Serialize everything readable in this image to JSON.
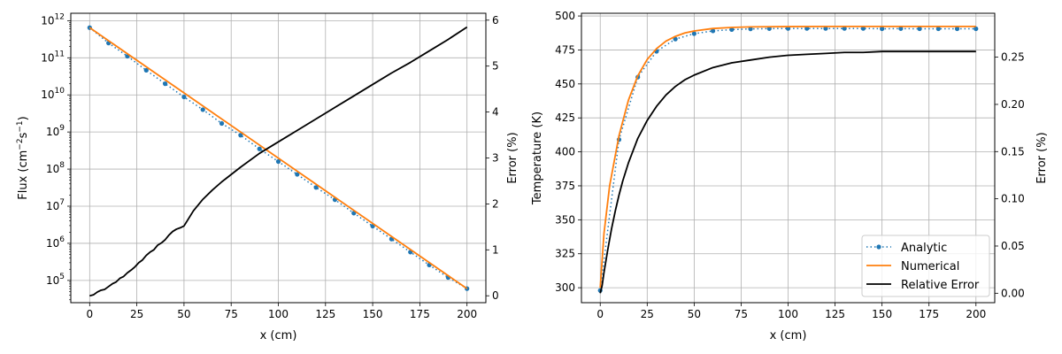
{
  "chart_data": [
    {
      "type": "line",
      "xlabel": "x (cm)",
      "ylabel_base": "Flux (cm",
      "ylabel_sup1": "−2",
      "ylabel_mid": "s",
      "ylabel_sup2": "−1",
      "ylabel_end": ")",
      "y2label": "Error (%)",
      "xlim": [
        -10,
        210
      ],
      "ylim_log10": [
        4.4,
        12.2
      ],
      "y2lim": [
        -0.15,
        6.15
      ],
      "yscale": "log",
      "grid": true,
      "xticks": [
        0,
        25,
        50,
        75,
        100,
        125,
        150,
        175,
        200
      ],
      "xtick_labels": [
        "0",
        "25",
        "50",
        "75",
        "100",
        "125",
        "150",
        "175",
        "200"
      ],
      "yticks_exp": [
        5,
        6,
        7,
        8,
        9,
        10,
        11,
        12
      ],
      "ytick_base": "10",
      "ytick_exp_labels": [
        "5",
        "6",
        "7",
        "8",
        "9",
        "10",
        "11",
        "12"
      ],
      "y2ticks": [
        0,
        1,
        2,
        3,
        4,
        5,
        6
      ],
      "y2tick_labels": [
        "0",
        "1",
        "2",
        "3",
        "4",
        "5",
        "6"
      ],
      "series": [
        {
          "name": "Analytic",
          "style": "dotted-markers",
          "color": "#1f77b4",
          "x": [
            0,
            10,
            20,
            30,
            40,
            50,
            60,
            70,
            80,
            90,
            100,
            110,
            120,
            130,
            140,
            150,
            160,
            170,
            180,
            190,
            200
          ],
          "y": [
            650000000000.0,
            250000000000.0,
            110000000000.0,
            46000000000.0,
            20000000000.0,
            8800000000.0,
            4000000000.0,
            1700000000.0,
            820000000.0,
            350000000.0,
            160000000.0,
            72000000.0,
            32000000.0,
            15000000.0,
            6500000.0,
            2900000.0,
            1300000.0,
            580000.0,
            260000.0,
            120000.0,
            60000.0
          ]
        },
        {
          "name": "Numerical",
          "style": "line",
          "color": "#ff7f0e",
          "x": [
            0,
            200
          ],
          "y": [
            650000000000.0,
            60000.0
          ]
        },
        {
          "name": "Relative Error",
          "style": "line",
          "color": "#000000",
          "axis": "right",
          "x": [
            0,
            2,
            4,
            6,
            8,
            10,
            12,
            14,
            16,
            18,
            20,
            22,
            24,
            26,
            28,
            30,
            32,
            34,
            36,
            38,
            40,
            42,
            44,
            46,
            48,
            50,
            55,
            60,
            65,
            70,
            80,
            90,
            100,
            110,
            120,
            130,
            140,
            150,
            160,
            170,
            180,
            190,
            200
          ],
          "y": [
            0.0,
            0.02,
            0.08,
            0.12,
            0.14,
            0.2,
            0.26,
            0.3,
            0.38,
            0.42,
            0.5,
            0.56,
            0.63,
            0.72,
            0.78,
            0.88,
            0.95,
            1.0,
            1.1,
            1.15,
            1.22,
            1.32,
            1.4,
            1.45,
            1.48,
            1.52,
            1.85,
            2.1,
            2.3,
            2.48,
            2.8,
            3.1,
            3.35,
            3.6,
            3.85,
            4.1,
            4.35,
            4.6,
            4.85,
            5.08,
            5.33,
            5.58,
            5.85
          ]
        }
      ]
    },
    {
      "type": "line",
      "xlabel": "x (cm)",
      "ylabel": "Temperature (K)",
      "y2label": "Error (%)",
      "xlim": [
        -10,
        210
      ],
      "ylim": [
        289,
        502
      ],
      "y2lim": [
        -0.01,
        0.2965
      ],
      "grid": true,
      "legend": "bottom-right",
      "xticks": [
        0,
        25,
        50,
        75,
        100,
        125,
        150,
        175,
        200
      ],
      "xtick_labels": [
        "0",
        "25",
        "50",
        "75",
        "100",
        "125",
        "150",
        "175",
        "200"
      ],
      "yticks": [
        300,
        325,
        350,
        375,
        400,
        425,
        450,
        475,
        500
      ],
      "ytick_labels": [
        "300",
        "325",
        "350",
        "375",
        "400",
        "425",
        "450",
        "475",
        "500"
      ],
      "y2ticks": [
        0,
        0.05,
        0.1,
        0.15,
        0.2,
        0.25
      ],
      "y2tick_labels": [
        "0.00",
        "0.05",
        "0.10",
        "0.15",
        "0.20",
        "0.25"
      ],
      "series": [
        {
          "name": "Analytic",
          "style": "dotted-markers",
          "color": "#1f77b4",
          "x": [
            0,
            10,
            20,
            30,
            40,
            50,
            60,
            70,
            80,
            90,
            100,
            110,
            120,
            130,
            140,
            150,
            160,
            170,
            180,
            190,
            200
          ],
          "y": [
            298,
            409,
            455,
            474,
            483,
            487,
            489,
            490,
            490.5,
            490.7,
            490.8,
            490.8,
            490.8,
            490.8,
            490.8,
            490.6,
            490.7,
            490.6,
            490.6,
            490.6,
            490.6
          ]
        },
        {
          "name": "Numerical",
          "style": "line",
          "color": "#ff7f0e",
          "x": [
            0,
            2,
            5,
            10,
            15,
            20,
            25,
            30,
            35,
            40,
            45,
            50,
            60,
            70,
            80,
            100,
            125,
            150,
            175,
            200
          ],
          "y": [
            300,
            340,
            375,
            412,
            438,
            456,
            468,
            476,
            481.5,
            485,
            487.5,
            489,
            490.8,
            491.6,
            492,
            492.2,
            492.3,
            492.3,
            492.3,
            492.3
          ]
        },
        {
          "name": "Relative Error",
          "style": "line",
          "color": "#000000",
          "axis": "right",
          "x": [
            0,
            1,
            2,
            4,
            6,
            8,
            10,
            12,
            15,
            20,
            25,
            30,
            35,
            40,
            45,
            50,
            60,
            70,
            80,
            90,
            100,
            110,
            120,
            130,
            140,
            150,
            160,
            175,
            200
          ],
          "y": [
            0.0,
            0.008,
            0.022,
            0.046,
            0.068,
            0.087,
            0.104,
            0.119,
            0.138,
            0.164,
            0.183,
            0.198,
            0.21,
            0.219,
            0.226,
            0.231,
            0.239,
            0.244,
            0.247,
            0.25,
            0.252,
            0.253,
            0.254,
            0.255,
            0.255,
            0.256,
            0.256,
            0.256,
            0.256
          ]
        }
      ]
    }
  ]
}
